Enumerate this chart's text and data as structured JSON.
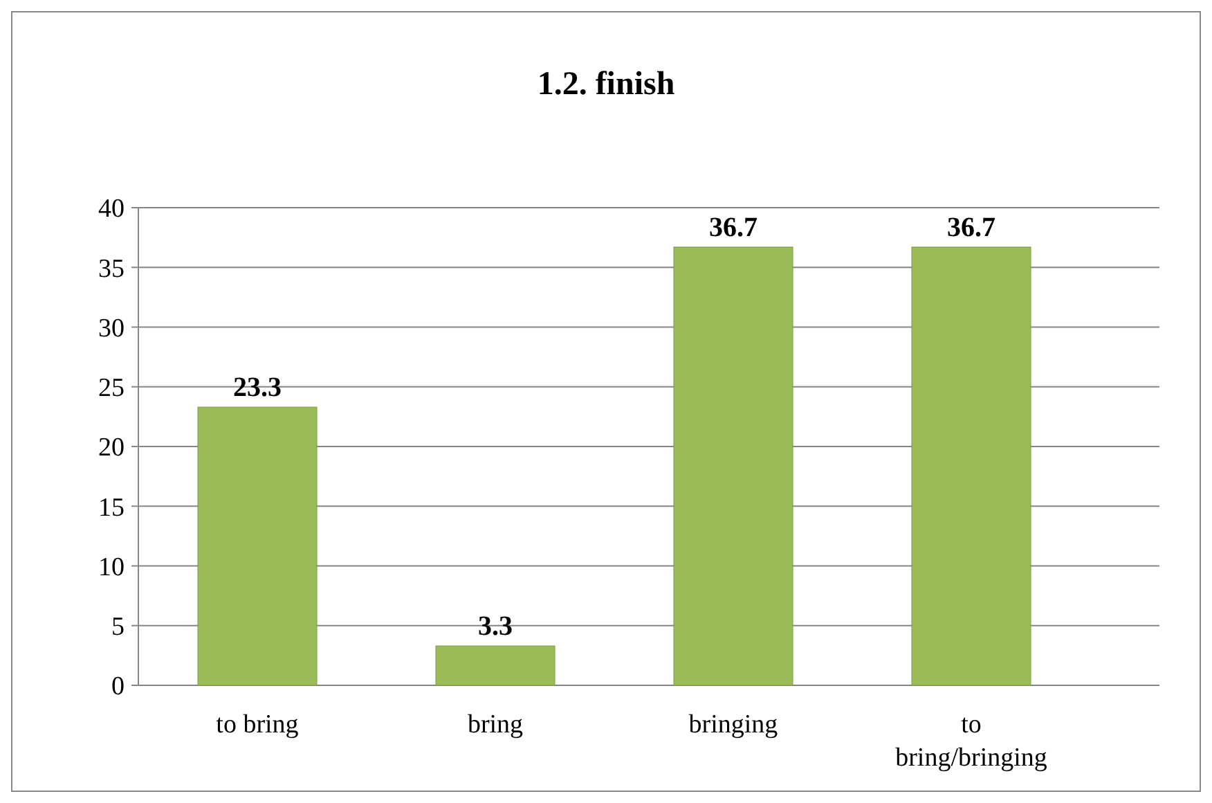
{
  "chart_data": {
    "type": "bar",
    "title": "1.2. finish",
    "categories": [
      "to bring",
      "bring",
      "bringing",
      "to bring/bringing"
    ],
    "values": [
      23.3,
      3.3,
      36.7,
      36.7
    ],
    "color": "#9bbb59",
    "ylim": [
      0,
      40
    ],
    "yticks": [
      0,
      5,
      10,
      15,
      20,
      25,
      30,
      35,
      40
    ],
    "grid": "y",
    "data_labels": true
  }
}
